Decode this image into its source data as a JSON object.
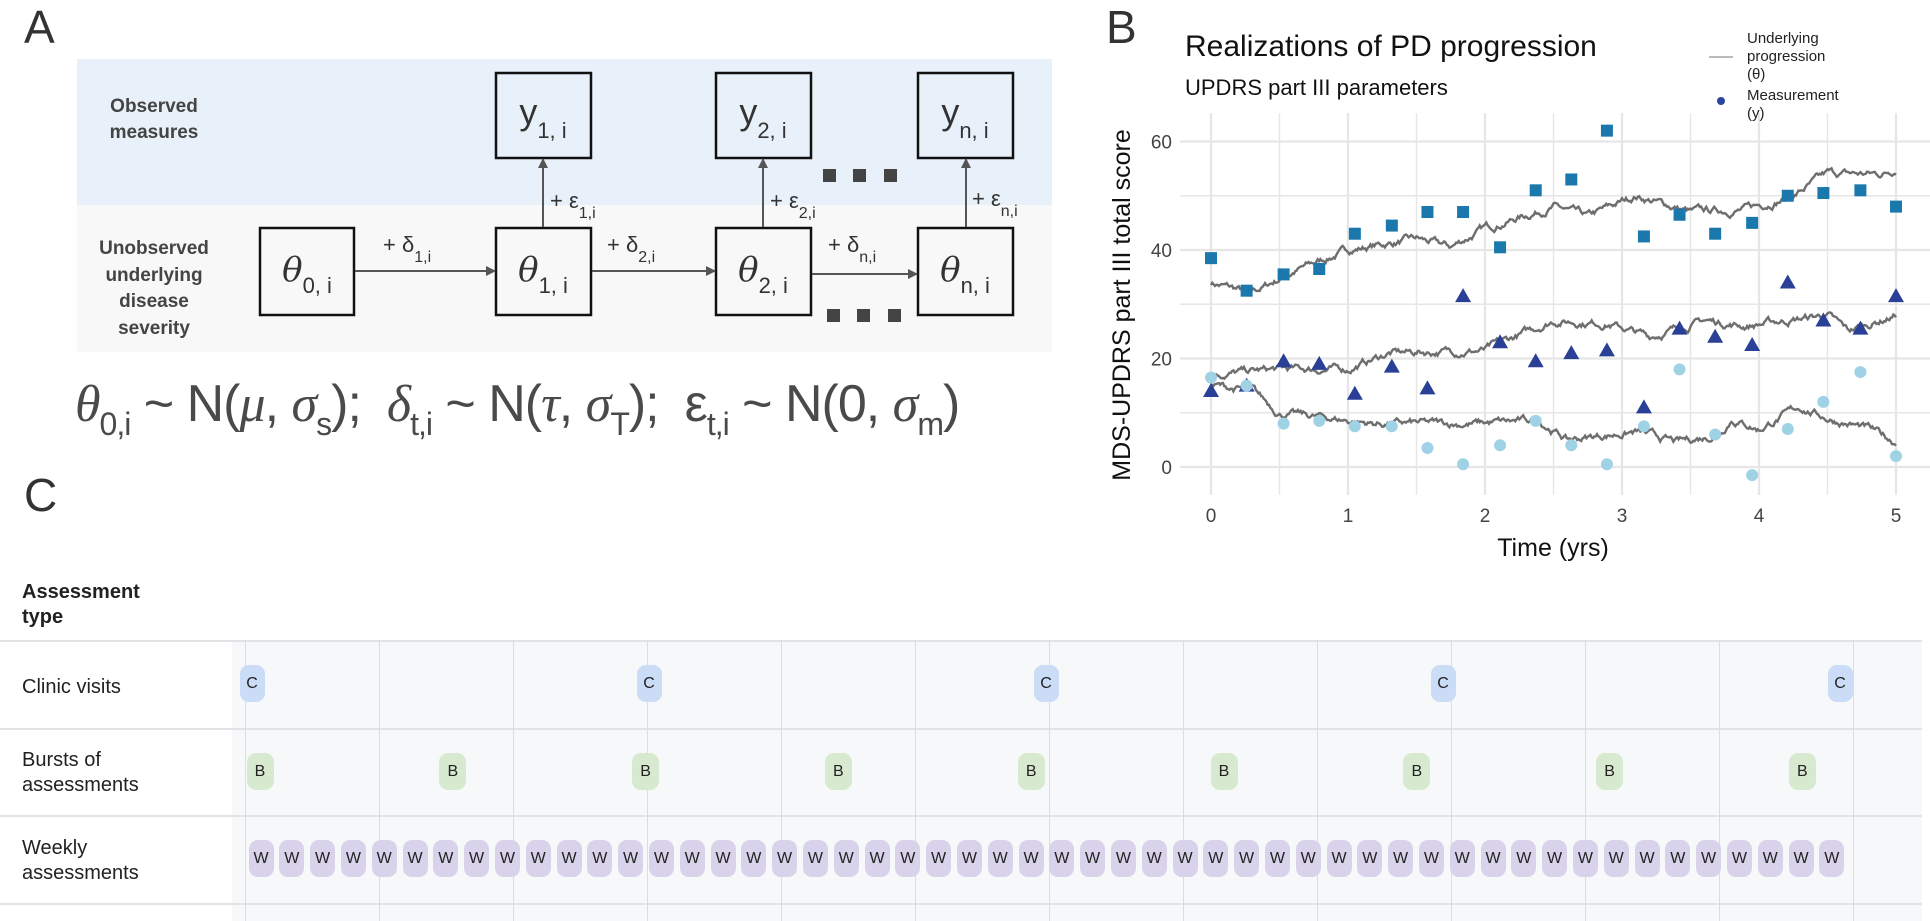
{
  "panel_labels": {
    "a": "A",
    "b": "B",
    "c": "C"
  },
  "diagram": {
    "observed_label": [
      "Observed",
      "measures"
    ],
    "unobserved_label": [
      "Unobserved",
      "underlying",
      "disease",
      "severity"
    ],
    "colors": {
      "observed_band": "#e8f0fa",
      "unobserved_band": "#f8f8f8"
    },
    "observed_boxes": [
      {
        "sym": "y",
        "sub": "1, i"
      },
      {
        "sym": "y",
        "sub": "2, i"
      },
      {
        "sym": "y",
        "sub": "n, i"
      }
    ],
    "latent_boxes": [
      {
        "sym": "θ",
        "sub": "0, i"
      },
      {
        "sym": "θ",
        "sub": "1, i"
      },
      {
        "sym": "θ",
        "sub": "2, i"
      },
      {
        "sym": "θ",
        "sub": "n, i"
      }
    ],
    "transition_labels": [
      {
        "pre": "+ δ",
        "sub": "1,i"
      },
      {
        "pre": "+ δ",
        "sub": "2,i"
      },
      {
        "pre": "+ δ",
        "sub": "n,i"
      }
    ],
    "error_labels": [
      {
        "pre": "+ ε",
        "sub": "1,i"
      },
      {
        "pre": "+ ε",
        "sub": "2,i"
      },
      {
        "pre": "+ ε",
        "sub": "n,i"
      }
    ],
    "formula": {
      "theta": "θ",
      "theta_sub": "0,i",
      "theta_dist": " ~ N(",
      "mu": "μ",
      "comma1": ", ",
      "sigma1": "σ",
      "sigma1_sub": "s",
      "close1": ");",
      "delta": "δ",
      "delta_sub": "t,i",
      "delta_dist": " ~ N(",
      "tau": "τ",
      "comma2": ", ",
      "sigma2": "σ",
      "sigma2_sub": "T",
      "close2": ");",
      "eps": "ε",
      "eps_sub": "t,i",
      "eps_dist": " ~ N(0, ",
      "sigma3": "σ",
      "sigma3_sub": "m",
      "close3": ")"
    }
  },
  "chart_data": {
    "type": "line+scatter",
    "title": "Realizations of PD progression",
    "subtitle": "UPDRS part III parameters",
    "xlabel": "Time (yrs)",
    "ylabel": "MDS-UPDRS part III total score",
    "xlim": [
      0,
      5
    ],
    "ylim": [
      -3,
      64
    ],
    "x_ticks": [
      0,
      1,
      2,
      3,
      4,
      5
    ],
    "y_ticks": [
      0,
      20,
      40,
      60
    ],
    "grid": true,
    "legend_placement": "top-right",
    "legend": [
      {
        "label": [
          "Underlying",
          "progression",
          "(θ)"
        ],
        "kind": "line",
        "color": "#bbbbbb"
      },
      {
        "label": [
          "Measurement",
          "(y)"
        ],
        "kind": "point",
        "color": "#2a46a0"
      }
    ],
    "measurement_times": [
      0,
      0.26,
      0.53,
      0.79,
      1.05,
      1.32,
      1.58,
      1.84,
      2.11,
      2.37,
      2.63,
      2.89,
      3.16,
      3.42,
      3.68,
      3.95,
      4.21,
      4.47,
      4.74,
      5.0
    ],
    "measurements": [
      {
        "marker": "square",
        "color": "#1a78ac",
        "values": [
          38.5,
          32.5,
          35.5,
          36.5,
          43,
          44.5,
          47,
          47,
          40.5,
          51,
          53,
          62,
          42.5,
          46.5,
          43,
          45,
          50,
          50.5,
          51,
          48
        ]
      },
      {
        "marker": "triangle",
        "color": "#2a3f96",
        "values": [
          14,
          15,
          19.5,
          19,
          13.5,
          18.5,
          14.5,
          31.5,
          23,
          19.5,
          21,
          21.5,
          11,
          25.5,
          24,
          22.5,
          34,
          27,
          25.5,
          31.5
        ]
      },
      {
        "marker": "circle",
        "color": "#9fd2e5",
        "values": [
          16.5,
          15,
          8,
          8.5,
          7.5,
          7.5,
          3.5,
          0.5,
          4,
          8.5,
          4,
          0.5,
          7.5,
          18,
          6,
          -1.5,
          7,
          12,
          17.5,
          2
        ]
      }
    ],
    "underlying": [
      {
        "color": "#6e6e6e",
        "x": [
          0,
          0.3,
          0.6,
          1.0,
          1.5,
          1.75,
          2.0,
          2.5,
          2.75,
          3.1,
          3.5,
          3.9,
          4.25,
          4.5,
          4.9,
          5.0
        ],
        "y": [
          34,
          32,
          36,
          40,
          42,
          40.5,
          44,
          48,
          46,
          50,
          47,
          47.5,
          50,
          54,
          54,
          55
        ]
      },
      {
        "color": "#6e6e6e",
        "x": [
          0,
          0.5,
          1.0,
          1.3,
          2.0,
          2.5,
          2.9,
          3.2,
          3.6,
          3.9,
          4.5,
          4.65,
          5.0
        ],
        "y": [
          17,
          18,
          18,
          21,
          21.5,
          27,
          26.5,
          24,
          27,
          26,
          28,
          25,
          28
        ]
      },
      {
        "color": "#6e6e6e",
        "x": [
          0,
          0.3,
          0.5,
          1.2,
          1.9,
          2.4,
          2.6,
          3.1,
          3.4,
          3.7,
          3.8,
          4.0,
          4.3,
          4.5,
          4.8,
          5.0
        ],
        "y": [
          15,
          14,
          10,
          8,
          8,
          8.5,
          5,
          6.5,
          4.5,
          6,
          9,
          7,
          11,
          9,
          7,
          4.5
        ]
      }
    ]
  },
  "schedule": {
    "header": "Assessment type",
    "colors": {
      "clinic": "#cadcf6",
      "burst": "#d7eacf",
      "weekly": "#d8d2ea"
    },
    "rows": [
      {
        "label": "Clinic visits",
        "badge": "C",
        "count": 5
      },
      {
        "label": "Bursts of assessments",
        "badge": "B",
        "count": 9
      },
      {
        "label": "Weekly assessments",
        "badge": "W",
        "count": 52
      }
    ]
  }
}
